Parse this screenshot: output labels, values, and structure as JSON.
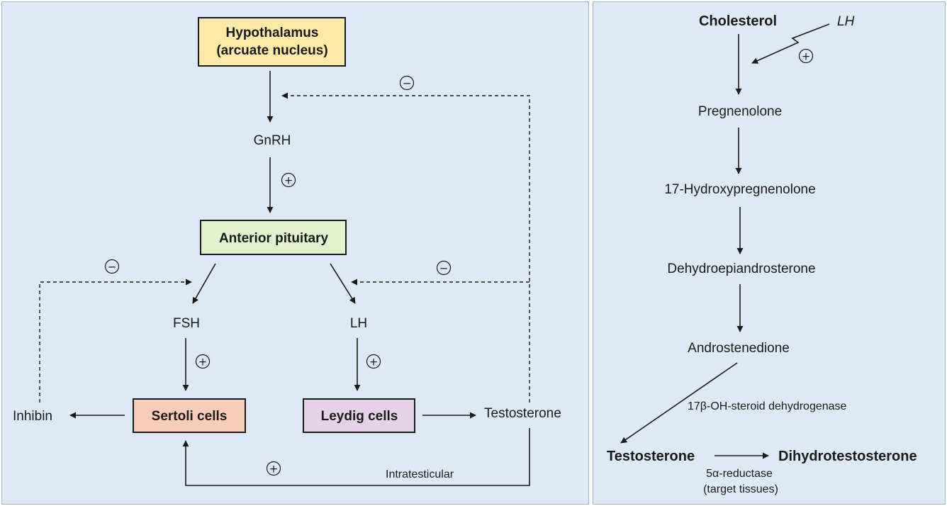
{
  "left_panel": {
    "hypothalamus": {
      "line1": "Hypothalamus",
      "line2": "(arcuate nucleus)",
      "fill": "#fde9a8"
    },
    "gnrh": "GnRH",
    "anterior_pituitary": {
      "label": "Anterior pituitary",
      "fill": "#e2f2cf"
    },
    "fsh": "FSH",
    "lh": "LH",
    "sertoli": {
      "label": "Sertoli cells",
      "fill": "#f8cdb8"
    },
    "leydig": {
      "label": "Leydig cells",
      "fill": "#e6d2e8"
    },
    "inhibin": "Inhibin",
    "testosterone": "Testosterone",
    "intratesticular": "Intratesticular",
    "plus": "+",
    "minus": "−"
  },
  "right_panel": {
    "cholesterol": "Cholesterol",
    "lh": "LH",
    "pregnenolone": "Pregnenolone",
    "hydroxypregnenolone": "17-Hydroxypregnenolone",
    "dhea": "Dehydroepiandrosterone",
    "androstenedione": "Androstenedione",
    "enzyme_17b": "17β-OH-steroid dehydrogenase",
    "testosterone": "Testosterone",
    "dht": "Dihydrotestosterone",
    "reductase": "5α-reductase",
    "target": "(target tissues)",
    "plus": "+"
  }
}
